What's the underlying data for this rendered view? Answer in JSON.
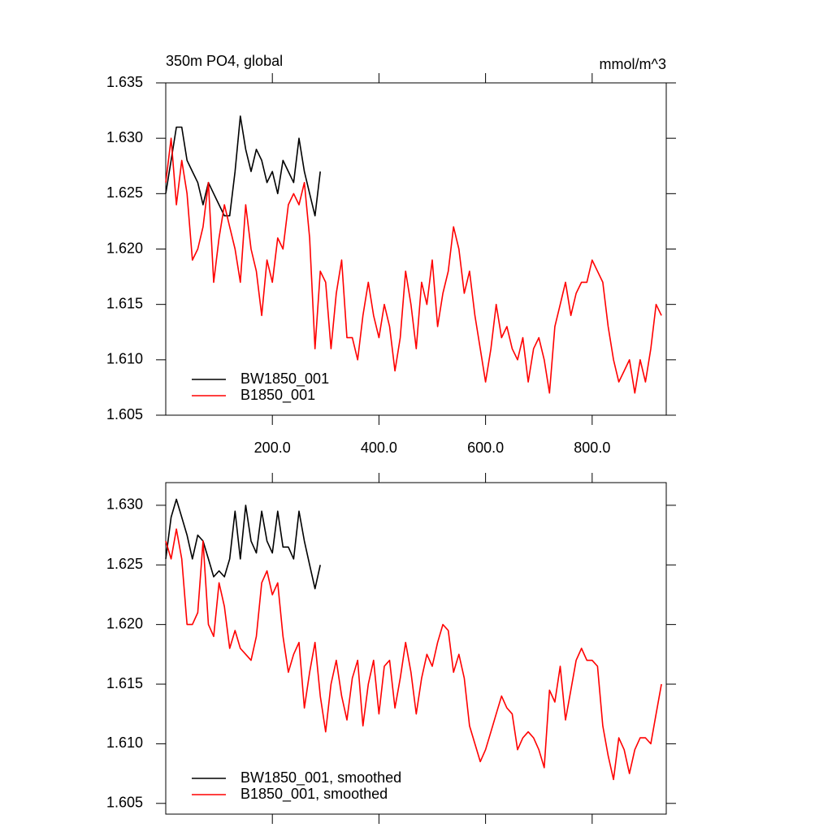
{
  "chart_data": [
    {
      "type": "line",
      "title": "350m PO4, global",
      "units": "mmol/m^3",
      "xlim": [
        0,
        939
      ],
      "ylim": [
        1.605,
        1.635
      ],
      "xticks": [
        {
          "value": 200,
          "label": "200.0"
        },
        {
          "value": 400,
          "label": "400.0"
        },
        {
          "value": 600,
          "label": "600.0"
        },
        {
          "value": 800,
          "label": "800.0"
        }
      ],
      "yticks": [
        1.605,
        {
          "value": 1.61,
          "label": "1.610"
        },
        1.615,
        {
          "value": 1.62,
          "label": "1.620"
        },
        1.625,
        {
          "value": 1.63,
          "label": "1.630"
        },
        1.635
      ],
      "series": [
        {
          "name": "BW1850_001",
          "color": "#000000",
          "x": [
            0,
            10,
            20,
            30,
            40,
            50,
            60,
            70,
            80,
            90,
            100,
            110,
            120,
            130,
            140,
            150,
            160,
            170,
            180,
            190,
            200,
            210,
            220,
            230,
            240,
            250,
            260,
            270,
            280,
            290
          ],
          "values": [
            1.625,
            1.628,
            1.631,
            1.631,
            1.628,
            1.627,
            1.626,
            1.624,
            1.626,
            1.625,
            1.624,
            1.623,
            1.623,
            1.627,
            1.632,
            1.629,
            1.627,
            1.629,
            1.628,
            1.626,
            1.627,
            1.625,
            1.628,
            1.627,
            1.626,
            1.63,
            1.627,
            1.625,
            1.623,
            1.627
          ]
        },
        {
          "name": "B1850_001",
          "color": "#ff0000",
          "x": [
            0,
            10,
            20,
            30,
            40,
            50,
            60,
            70,
            80,
            90,
            100,
            110,
            120,
            130,
            140,
            150,
            160,
            170,
            180,
            190,
            200,
            210,
            220,
            230,
            240,
            250,
            260,
            270,
            280,
            290,
            300,
            310,
            320,
            330,
            340,
            350,
            360,
            370,
            380,
            390,
            400,
            410,
            420,
            430,
            440,
            450,
            460,
            470,
            480,
            490,
            500,
            510,
            520,
            530,
            540,
            550,
            560,
            570,
            580,
            590,
            600,
            610,
            620,
            630,
            640,
            650,
            660,
            670,
            680,
            690,
            700,
            710,
            720,
            730,
            740,
            750,
            760,
            770,
            780,
            790,
            800,
            810,
            820,
            830,
            840,
            850,
            860,
            870,
            880,
            890,
            900,
            910,
            920,
            930
          ],
          "values": [
            1.626,
            1.63,
            1.624,
            1.628,
            1.625,
            1.619,
            1.62,
            1.622,
            1.626,
            1.617,
            1.621,
            1.624,
            1.622,
            1.62,
            1.617,
            1.624,
            1.62,
            1.618,
            1.614,
            1.619,
            1.617,
            1.621,
            1.62,
            1.624,
            1.625,
            1.624,
            1.626,
            1.621,
            1.611,
            1.618,
            1.617,
            1.611,
            1.616,
            1.619,
            1.612,
            1.612,
            1.61,
            1.614,
            1.617,
            1.614,
            1.612,
            1.615,
            1.613,
            1.609,
            1.612,
            1.618,
            1.615,
            1.611,
            1.617,
            1.615,
            1.619,
            1.613,
            1.616,
            1.618,
            1.622,
            1.62,
            1.616,
            1.618,
            1.614,
            1.611,
            1.608,
            1.611,
            1.615,
            1.612,
            1.613,
            1.611,
            1.61,
            1.612,
            1.608,
            1.611,
            1.612,
            1.61,
            1.607,
            1.613,
            1.615,
            1.617,
            1.614,
            1.616,
            1.617,
            1.617,
            1.619,
            1.618,
            1.617,
            1.613,
            1.61,
            1.608,
            1.609,
            1.61,
            1.607,
            1.61,
            1.608,
            1.611,
            1.615,
            1.614
          ]
        }
      ]
    },
    {
      "type": "line",
      "xlim": [
        0,
        939
      ],
      "ylim": [
        1.6041,
        1.6319
      ],
      "xticks": [
        200,
        400,
        600,
        800
      ],
      "yticks": [
        1.605,
        {
          "value": 1.61,
          "label": "1.610"
        },
        1.615,
        {
          "value": 1.62,
          "label": "1.620"
        },
        1.625,
        {
          "value": 1.63,
          "label": "1.630"
        }
      ],
      "series": [
        {
          "name": "BW1850_001, smoothed",
          "color": "#000000",
          "x": [
            0,
            10,
            20,
            30,
            40,
            50,
            60,
            70,
            80,
            90,
            100,
            110,
            120,
            130,
            140,
            150,
            160,
            170,
            180,
            190,
            200,
            210,
            220,
            230,
            240,
            250,
            260,
            270,
            280,
            290
          ],
          "values": [
            1.6255,
            1.629,
            1.6305,
            1.629,
            1.6275,
            1.6255,
            1.6275,
            1.627,
            1.6255,
            1.624,
            1.6245,
            1.624,
            1.6255,
            1.6295,
            1.6255,
            1.63,
            1.627,
            1.626,
            1.6295,
            1.627,
            1.626,
            1.6295,
            1.6265,
            1.6265,
            1.6255,
            1.6295,
            1.627,
            1.625,
            1.623,
            1.625
          ]
        },
        {
          "name": "B1850_001, smoothed",
          "color": "#ff0000",
          "x": [
            0,
            10,
            20,
            30,
            40,
            50,
            60,
            70,
            80,
            90,
            100,
            110,
            120,
            130,
            140,
            150,
            160,
            170,
            180,
            190,
            200,
            210,
            220,
            230,
            240,
            250,
            260,
            270,
            280,
            290,
            300,
            310,
            320,
            330,
            340,
            350,
            360,
            370,
            380,
            390,
            400,
            410,
            420,
            430,
            440,
            450,
            460,
            470,
            480,
            490,
            500,
            510,
            520,
            530,
            540,
            550,
            560,
            570,
            580,
            590,
            600,
            610,
            620,
            630,
            640,
            650,
            660,
            670,
            680,
            690,
            700,
            710,
            720,
            730,
            740,
            750,
            760,
            770,
            780,
            790,
            800,
            810,
            820,
            830,
            840,
            850,
            860,
            870,
            880,
            890,
            900,
            910,
            920,
            930
          ],
          "values": [
            1.627,
            1.6255,
            1.628,
            1.6255,
            1.62,
            1.62,
            1.621,
            1.627,
            1.62,
            1.619,
            1.6235,
            1.6215,
            1.618,
            1.6195,
            1.618,
            1.6175,
            1.617,
            1.619,
            1.6235,
            1.6245,
            1.6225,
            1.6235,
            1.619,
            1.616,
            1.6175,
            1.6185,
            1.613,
            1.616,
            1.6185,
            1.614,
            1.611,
            1.615,
            1.617,
            1.614,
            1.612,
            1.6155,
            1.617,
            1.6115,
            1.615,
            1.617,
            1.6125,
            1.6165,
            1.617,
            1.613,
            1.6155,
            1.6185,
            1.616,
            1.6125,
            1.6155,
            1.6175,
            1.6165,
            1.6185,
            1.62,
            1.6195,
            1.616,
            1.6175,
            1.6155,
            1.6115,
            1.61,
            1.6085,
            1.6095,
            1.611,
            1.6125,
            1.614,
            1.613,
            1.6125,
            1.6095,
            1.6105,
            1.611,
            1.6105,
            1.6095,
            1.608,
            1.6145,
            1.6135,
            1.6165,
            1.612,
            1.6145,
            1.617,
            1.618,
            1.617,
            1.617,
            1.6165,
            1.6115,
            1.609,
            1.607,
            1.6105,
            1.6095,
            1.6075,
            1.6095,
            1.6105,
            1.6105,
            1.61,
            1.6125,
            1.615
          ]
        }
      ]
    }
  ]
}
